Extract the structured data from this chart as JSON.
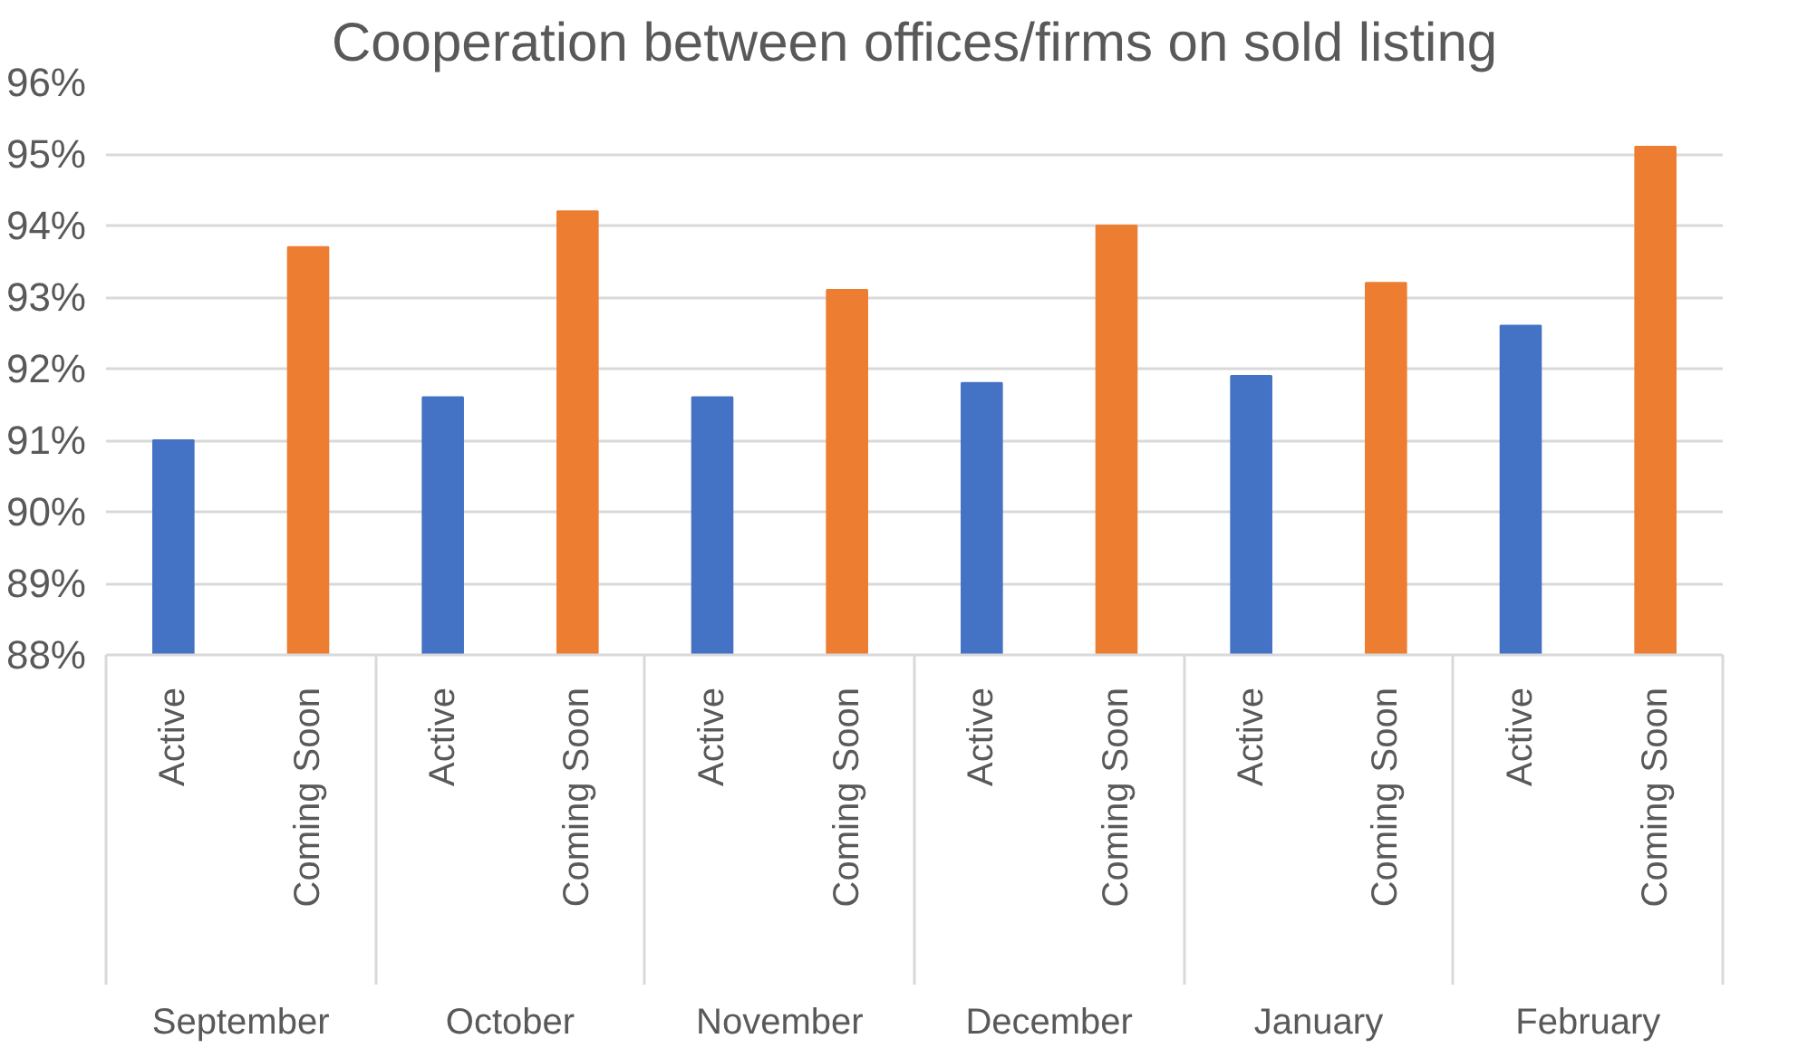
{
  "chart_data": {
    "type": "bar",
    "title": "Cooperation between offices/firms on sold listing",
    "categories": [
      "Active",
      "Coming Soon",
      "Active",
      "Coming Soon",
      "Active",
      "Coming Soon",
      "Active",
      "Coming Soon",
      "Active",
      "Coming Soon",
      "Active",
      "Coming Soon"
    ],
    "values": [
      91.0,
      93.7,
      91.6,
      94.2,
      91.6,
      93.1,
      91.8,
      94.0,
      91.9,
      93.2,
      92.6,
      95.1
    ],
    "colors": [
      "#4472c4",
      "#ed7d31",
      "#4472c4",
      "#ed7d31",
      "#4472c4",
      "#ed7d31",
      "#4472c4",
      "#ed7d31",
      "#4472c4",
      "#ed7d31",
      "#4472c4",
      "#ed7d31"
    ],
    "annotations": [
      "September",
      "October",
      "November",
      "December",
      "January",
      "February"
    ],
    "ylim": [
      88,
      96
    ],
    "yticks": [
      {
        "value": 88,
        "label": "88%"
      },
      {
        "value": 89,
        "label": "89%"
      },
      {
        "value": 90,
        "label": "90%"
      },
      {
        "value": 91,
        "label": "91%"
      },
      {
        "value": 92,
        "label": "92%"
      },
      {
        "value": 93,
        "label": "93%"
      },
      {
        "value": 94,
        "label": "94%"
      },
      {
        "value": 95,
        "label": "95%"
      },
      {
        "value": 96,
        "label": "96%"
      }
    ],
    "grid": "y"
  }
}
